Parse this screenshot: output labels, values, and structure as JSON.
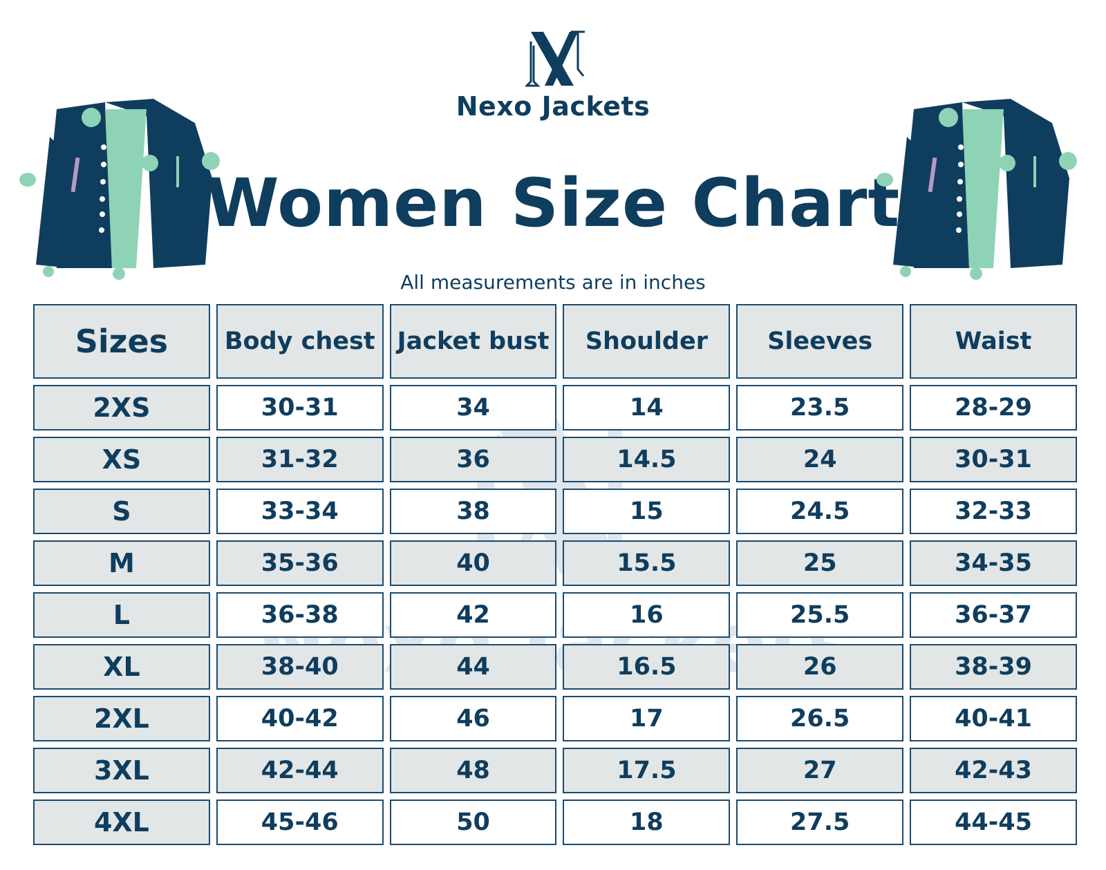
{
  "brand": {
    "name": "Nexo Jackets",
    "logo_letters": "NX"
  },
  "title": "Women Size Chart",
  "subtitle": "All measurements are in inches",
  "colors": {
    "navy": "#0f3d5e",
    "mint": "#8fd3b6",
    "header_bg": "#e2e6e6",
    "border": "#1a4a6e"
  },
  "icons": [
    "jacket-icon-left",
    "jacket-icon-right",
    "logo-icon"
  ],
  "table": {
    "headers": [
      "Sizes",
      "Body chest",
      "Jacket bust",
      "Shoulder",
      "Sleeves",
      "Waist"
    ],
    "rows": [
      {
        "size": "2XS",
        "chest": "30-31",
        "bust": "34",
        "shoulder": "14",
        "sleeves": "23.5",
        "waist": "28-29"
      },
      {
        "size": "XS",
        "chest": "31-32",
        "bust": "36",
        "shoulder": "14.5",
        "sleeves": "24",
        "waist": "30-31"
      },
      {
        "size": "S",
        "chest": "33-34",
        "bust": "38",
        "shoulder": "15",
        "sleeves": "24.5",
        "waist": "32-33"
      },
      {
        "size": "M",
        "chest": "35-36",
        "bust": "40",
        "shoulder": "15.5",
        "sleeves": "25",
        "waist": "34-35"
      },
      {
        "size": "L",
        "chest": "36-38",
        "bust": "42",
        "shoulder": "16",
        "sleeves": "25.5",
        "waist": "36-37"
      },
      {
        "size": "XL",
        "chest": "38-40",
        "bust": "44",
        "shoulder": "16.5",
        "sleeves": "26",
        "waist": "38-39"
      },
      {
        "size": "2XL",
        "chest": "40-42",
        "bust": "46",
        "shoulder": "17",
        "sleeves": "26.5",
        "waist": "40-41"
      },
      {
        "size": "3XL",
        "chest": "42-44",
        "bust": "48",
        "shoulder": "17.5",
        "sleeves": "27",
        "waist": "42-43"
      },
      {
        "size": "4XL",
        "chest": "45-46",
        "bust": "50",
        "shoulder": "18",
        "sleeves": "27.5",
        "waist": "44-45"
      }
    ]
  }
}
